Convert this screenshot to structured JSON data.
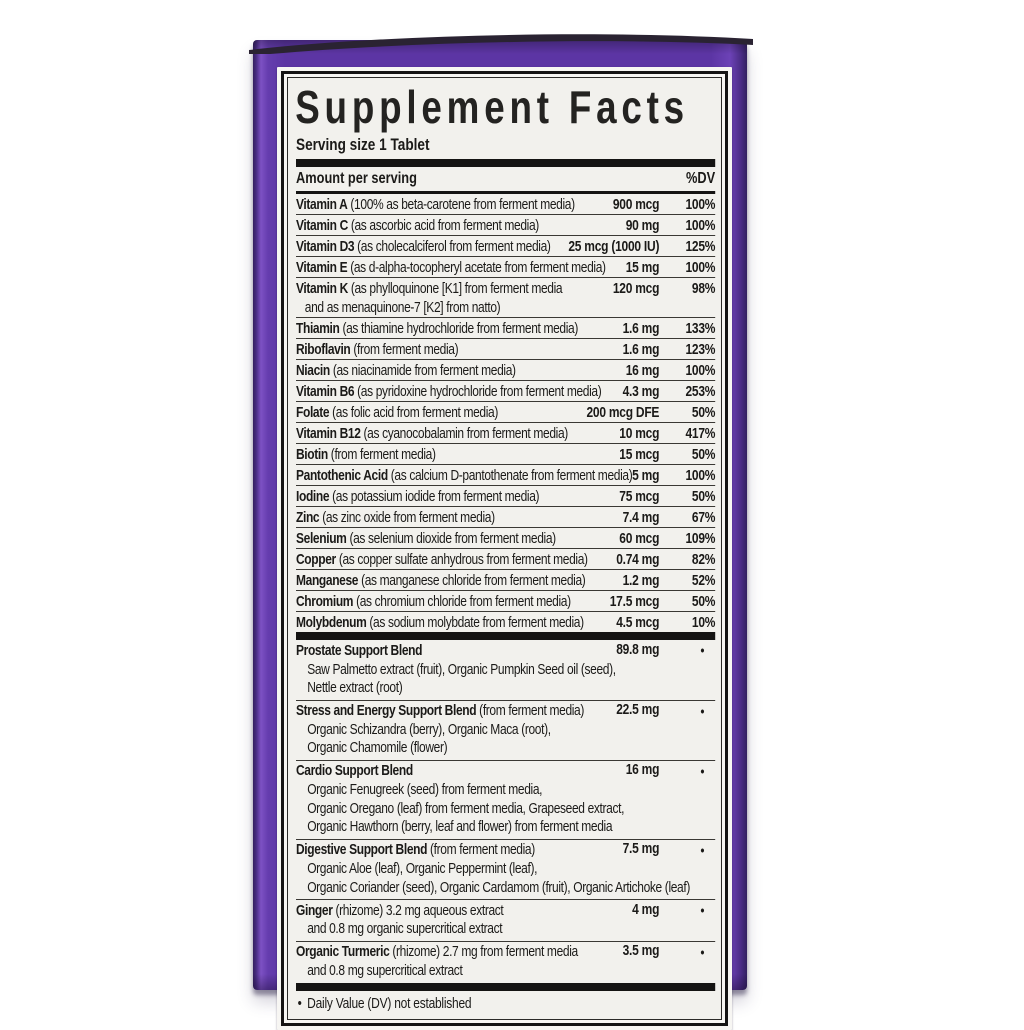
{
  "panel": {
    "title": "Supplement Facts",
    "serving_size": "Serving size 1 Tablet",
    "amount_header": "Amount per serving",
    "dv_header": "%DV",
    "nutrients": [
      {
        "name": "Vitamin A",
        "desc": "(100% as beta-carotene from ferment media)",
        "amount": "900 mcg",
        "dv": "100%"
      },
      {
        "name": "Vitamin C",
        "desc": "(as ascorbic acid from ferment media)",
        "amount": "90 mg",
        "dv": "100%"
      },
      {
        "name": "Vitamin D3",
        "desc": "(as cholecalciferol from ferment media)",
        "amount": "25 mcg (1000 IU)",
        "dv": "125%"
      },
      {
        "name": "Vitamin E",
        "desc": "(as d-alpha-tocopheryl acetate from ferment media)",
        "amount": "15 mg",
        "dv": "100%"
      },
      {
        "name": "Vitamin K",
        "desc": "(as phylloquinone [K1] from ferment media",
        "desc2": "and as menaquinone-7 [K2] from natto)",
        "amount": "120 mcg",
        "dv": "98%"
      },
      {
        "name": "Thiamin",
        "desc": "(as thiamine hydrochloride from ferment media)",
        "amount": "1.6 mg",
        "dv": "133%"
      },
      {
        "name": "Riboflavin",
        "desc": "(from ferment media)",
        "amount": "1.6 mg",
        "dv": "123%"
      },
      {
        "name": "Niacin",
        "desc": "(as niacinamide from ferment media)",
        "amount": "16 mg",
        "dv": "100%"
      },
      {
        "name": "Vitamin B6",
        "desc": "(as pyridoxine hydrochloride from ferment media)",
        "amount": "4.3 mg",
        "dv": "253%"
      },
      {
        "name": "Folate",
        "desc": "(as folic acid from ferment media)",
        "amount": "200 mcg DFE",
        "dv": "50%"
      },
      {
        "name": "Vitamin B12",
        "desc": "(as cyanocobalamin from ferment media)",
        "amount": "10 mcg",
        "dv": "417%"
      },
      {
        "name": "Biotin",
        "desc": "(from ferment media)",
        "amount": "15 mcg",
        "dv": "50%"
      },
      {
        "name": "Pantothenic Acid",
        "desc": "(as calcium D-pantothenate from ferment media)",
        "amount": "5 mg",
        "dv": "100%"
      },
      {
        "name": "Iodine",
        "desc": "(as potassium iodide from ferment media)",
        "amount": "75 mcg",
        "dv": "50%"
      },
      {
        "name": "Zinc",
        "desc": "(as zinc oxide from ferment media)",
        "amount": "7.4 mg",
        "dv": "67%"
      },
      {
        "name": "Selenium",
        "desc": "(as selenium dioxide from ferment media)",
        "amount": "60 mcg",
        "dv": "109%"
      },
      {
        "name": "Copper",
        "desc": "(as copper sulfate anhydrous from ferment media)",
        "amount": "0.74 mg",
        "dv": "82%"
      },
      {
        "name": "Manganese",
        "desc": "(as manganese chloride from ferment media)",
        "amount": "1.2 mg",
        "dv": "52%"
      },
      {
        "name": "Chromium",
        "desc": "(as chromium chloride from ferment media)",
        "amount": "17.5 mcg",
        "dv": "50%"
      },
      {
        "name": "Molybdenum",
        "desc": "(as sodium molybdate from ferment media)",
        "amount": "4.5 mcg",
        "dv": "10%"
      }
    ],
    "blends": [
      {
        "name": "Prostate Support Blend",
        "desc": "",
        "amount": "89.8 mg",
        "dv": "•",
        "lines": [
          "Saw Palmetto extract (fruit), Organic Pumpkin Seed oil (seed),",
          "Nettle extract (root)"
        ]
      },
      {
        "name": "Stress and Energy Support Blend",
        "desc": "(from ferment media)",
        "amount": "22.5 mg",
        "dv": "•",
        "lines": [
          "Organic Schizandra (berry), Organic Maca (root),",
          "Organic Chamomile (flower)"
        ]
      },
      {
        "name": "Cardio Support Blend",
        "desc": "",
        "amount": "16 mg",
        "dv": "•",
        "lines": [
          "Organic Fenugreek (seed) from ferment media,",
          "Organic Oregano (leaf) from ferment media, Grapeseed extract,",
          "Organic Hawthorn (berry, leaf and flower) from ferment media"
        ]
      },
      {
        "name": "Digestive Support Blend",
        "desc": "(from ferment media)",
        "amount": "7.5 mg",
        "dv": "•",
        "lines": [
          "Organic Aloe (leaf), Organic Peppermint (leaf),",
          "Organic Coriander (seed), Organic Cardamom (fruit), Organic Artichoke (leaf)"
        ]
      },
      {
        "name": "Ginger",
        "desc": "(rhizome) 3.2 mg aqueous extract",
        "amount": "4 mg",
        "dv": "•",
        "lines": [
          "and 0.8 mg organic supercritical extract"
        ]
      },
      {
        "name": "Organic Turmeric",
        "desc": "(rhizome) 2.7 mg from ferment media",
        "amount": "3.5 mg",
        "dv": "•",
        "lines": [
          "and 0.8 mg supercritical extract"
        ]
      }
    ],
    "footnote_bullet": "•",
    "footnote": "Daily Value (DV) not established"
  },
  "colors": {
    "box_purple": "#5c35a4",
    "box_edge_dark": "#35215f",
    "label_bg": "#f2f1ed",
    "rule_black": "#151413",
    "text": "#1b1a18"
  }
}
